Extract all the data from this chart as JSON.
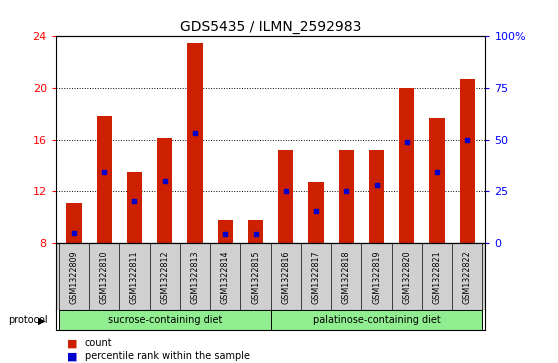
{
  "title": "GDS5435 / ILMN_2592983",
  "samples": [
    "GSM1322809",
    "GSM1322810",
    "GSM1322811",
    "GSM1322812",
    "GSM1322813",
    "GSM1322814",
    "GSM1322815",
    "GSM1322816",
    "GSM1322817",
    "GSM1322818",
    "GSM1322819",
    "GSM1322820",
    "GSM1322821",
    "GSM1322822"
  ],
  "counts": [
    11.1,
    17.8,
    13.5,
    16.1,
    23.5,
    9.8,
    9.8,
    15.2,
    12.7,
    15.2,
    15.2,
    20.0,
    17.7,
    20.7
  ],
  "percentile_values": [
    8.8,
    13.5,
    11.3,
    12.8,
    16.5,
    8.7,
    8.7,
    12.0,
    10.5,
    12.0,
    12.5,
    15.8,
    13.5,
    16.0
  ],
  "ymin": 8,
  "ymax": 24,
  "yticks_left": [
    8,
    12,
    16,
    20,
    24
  ],
  "yticks_right": [
    0,
    25,
    50,
    75,
    100
  ],
  "ytick_right_labels": [
    "0",
    "25",
    "50",
    "75",
    "100%"
  ],
  "bar_color": "#cc2000",
  "percentile_color": "#0000cc",
  "group_separator": 7,
  "group1_label": "sucrose-containing diet",
  "group2_label": "palatinose-containing diet",
  "group_color": "#90ee90",
  "protocol_label": "protocol",
  "legend_count": "count",
  "legend_percentile": "percentile rank within the sample",
  "ticklabel_bg": "#d0d0d0",
  "bar_width": 0.5
}
